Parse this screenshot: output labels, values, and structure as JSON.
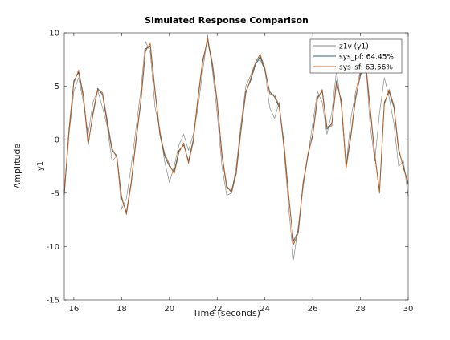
{
  "chart_data": {
    "type": "line",
    "title": "Simulated Response Comparison",
    "xlabel": "Time (seconds)",
    "ylabel": "Amplitude",
    "channel_label": "y1",
    "xlim": [
      15.6,
      30
    ],
    "ylim": [
      -15,
      10
    ],
    "x_ticks": [
      16,
      18,
      20,
      22,
      24,
      26,
      28,
      30
    ],
    "y_ticks": [
      -15,
      -10,
      -5,
      0,
      5,
      10
    ],
    "grid": false,
    "legend_position": "top-right",
    "series": [
      {
        "name": "z1v (y1)",
        "color": "#8a8a8a",
        "points": [
          [
            15.6,
            -5.2
          ],
          [
            15.8,
            0.5
          ],
          [
            16.0,
            4.5
          ],
          [
            16.2,
            5.8
          ],
          [
            16.4,
            3.5
          ],
          [
            16.6,
            0.5
          ],
          [
            16.8,
            3.5
          ],
          [
            17.0,
            4.6
          ],
          [
            17.2,
            3.0
          ],
          [
            17.4,
            1.2
          ],
          [
            17.6,
            -2.0
          ],
          [
            17.8,
            -1.5
          ],
          [
            18.0,
            -6.5
          ],
          [
            18.2,
            -5.5
          ],
          [
            18.4,
            -2.5
          ],
          [
            18.6,
            1.0
          ],
          [
            18.8,
            4.5
          ],
          [
            19.0,
            9.2
          ],
          [
            19.2,
            8.2
          ],
          [
            19.4,
            3.0
          ],
          [
            19.6,
            1.0
          ],
          [
            19.8,
            -2.0
          ],
          [
            20.0,
            -4.0
          ],
          [
            20.2,
            -2.5
          ],
          [
            20.4,
            -0.5
          ],
          [
            20.6,
            0.5
          ],
          [
            20.8,
            -1.0
          ],
          [
            21.0,
            0.5
          ],
          [
            21.2,
            3.0
          ],
          [
            21.4,
            6.5
          ],
          [
            21.6,
            9.8
          ],
          [
            21.8,
            6.5
          ],
          [
            22.0,
            2.5
          ],
          [
            22.2,
            -2.5
          ],
          [
            22.4,
            -5.2
          ],
          [
            22.6,
            -5.0
          ],
          [
            22.8,
            -2.5
          ],
          [
            23.0,
            1.5
          ],
          [
            23.2,
            5.0
          ],
          [
            23.4,
            6.0
          ],
          [
            23.6,
            7.2
          ],
          [
            23.8,
            7.5
          ],
          [
            24.0,
            6.5
          ],
          [
            24.2,
            3.0
          ],
          [
            24.4,
            2.0
          ],
          [
            24.6,
            3.5
          ],
          [
            24.8,
            -1.0
          ],
          [
            25.0,
            -6.5
          ],
          [
            25.2,
            -11.2
          ],
          [
            25.4,
            -8.0
          ],
          [
            25.6,
            -4.5
          ],
          [
            25.8,
            -1.5
          ],
          [
            26.0,
            1.5
          ],
          [
            26.2,
            4.5
          ],
          [
            26.4,
            3.5
          ],
          [
            26.6,
            0.5
          ],
          [
            26.8,
            2.5
          ],
          [
            27.0,
            6.5
          ],
          [
            27.2,
            3.0
          ],
          [
            27.4,
            -2.5
          ],
          [
            27.6,
            2.0
          ],
          [
            27.8,
            4.5
          ],
          [
            28.0,
            6.5
          ],
          [
            28.2,
            8.0
          ],
          [
            28.4,
            1.5
          ],
          [
            28.6,
            -2.0
          ],
          [
            28.8,
            2.5
          ],
          [
            29.0,
            5.8
          ],
          [
            29.2,
            4.0
          ],
          [
            29.4,
            1.5
          ],
          [
            29.6,
            -2.5
          ],
          [
            29.8,
            -2.0
          ],
          [
            30.0,
            -5.3
          ]
        ]
      },
      {
        "name": "sys_pf: 64.45%",
        "color": "#1e6b73",
        "points": [
          [
            15.6,
            -5.0
          ],
          [
            15.8,
            1.0
          ],
          [
            16.0,
            5.5
          ],
          [
            16.2,
            6.3
          ],
          [
            16.4,
            4.0
          ],
          [
            16.6,
            -0.5
          ],
          [
            16.8,
            2.5
          ],
          [
            17.0,
            4.8
          ],
          [
            17.2,
            4.2
          ],
          [
            17.4,
            1.5
          ],
          [
            17.6,
            -1.0
          ],
          [
            17.8,
            -1.5
          ],
          [
            18.0,
            -5.5
          ],
          [
            18.2,
            -6.8
          ],
          [
            18.4,
            -4.0
          ],
          [
            18.6,
            0.0
          ],
          [
            18.8,
            3.5
          ],
          [
            19.0,
            8.5
          ],
          [
            19.2,
            8.8
          ],
          [
            19.4,
            4.5
          ],
          [
            19.6,
            0.5
          ],
          [
            19.8,
            -1.5
          ],
          [
            20.0,
            -2.5
          ],
          [
            20.2,
            -3.0
          ],
          [
            20.4,
            -1.0
          ],
          [
            20.6,
            -0.5
          ],
          [
            20.8,
            -2.0
          ],
          [
            21.0,
            0.0
          ],
          [
            21.2,
            4.0
          ],
          [
            21.4,
            7.5
          ],
          [
            21.6,
            9.3
          ],
          [
            21.8,
            7.0
          ],
          [
            22.0,
            3.5
          ],
          [
            22.2,
            -1.5
          ],
          [
            22.4,
            -4.5
          ],
          [
            22.6,
            -4.8
          ],
          [
            22.8,
            -3.0
          ],
          [
            23.0,
            1.0
          ],
          [
            23.2,
            4.5
          ],
          [
            23.4,
            5.5
          ],
          [
            23.6,
            7.0
          ],
          [
            23.8,
            7.8
          ],
          [
            24.0,
            6.5
          ],
          [
            24.2,
            4.5
          ],
          [
            24.4,
            4.0
          ],
          [
            24.6,
            3.0
          ],
          [
            24.8,
            -0.5
          ],
          [
            25.0,
            -5.5
          ],
          [
            25.2,
            -9.5
          ],
          [
            25.4,
            -8.5
          ],
          [
            25.6,
            -4.0
          ],
          [
            25.8,
            -1.5
          ],
          [
            26.0,
            0.5
          ],
          [
            26.2,
            4.0
          ],
          [
            26.4,
            4.5
          ],
          [
            26.6,
            1.0
          ],
          [
            26.8,
            1.5
          ],
          [
            27.0,
            5.5
          ],
          [
            27.2,
            3.5
          ],
          [
            27.4,
            -2.5
          ],
          [
            27.6,
            0.5
          ],
          [
            27.8,
            4.0
          ],
          [
            28.0,
            6.0
          ],
          [
            28.2,
            7.5
          ],
          [
            28.4,
            3.0
          ],
          [
            28.6,
            -1.5
          ],
          [
            28.8,
            -4.8
          ],
          [
            29.0,
            3.5
          ],
          [
            29.2,
            4.5
          ],
          [
            29.4,
            3.0
          ],
          [
            29.6,
            -1.0
          ],
          [
            29.8,
            -2.5
          ],
          [
            30.0,
            -4.2
          ]
        ]
      },
      {
        "name": "sys_sf: 63.56%",
        "color": "#cc5a1a",
        "points": [
          [
            15.6,
            -5.1
          ],
          [
            15.8,
            0.8
          ],
          [
            16.0,
            5.3
          ],
          [
            16.2,
            6.5
          ],
          [
            16.4,
            4.2
          ],
          [
            16.6,
            -0.3
          ],
          [
            16.8,
            2.3
          ],
          [
            17.0,
            4.7
          ],
          [
            17.2,
            4.4
          ],
          [
            17.4,
            1.8
          ],
          [
            17.6,
            -0.8
          ],
          [
            17.8,
            -1.7
          ],
          [
            18.0,
            -5.3
          ],
          [
            18.2,
            -7.0
          ],
          [
            18.4,
            -4.2
          ],
          [
            18.6,
            -0.2
          ],
          [
            18.8,
            3.3
          ],
          [
            19.0,
            8.3
          ],
          [
            19.2,
            9.0
          ],
          [
            19.4,
            4.7
          ],
          [
            19.6,
            0.7
          ],
          [
            19.8,
            -1.3
          ],
          [
            20.0,
            -2.3
          ],
          [
            20.2,
            -3.2
          ],
          [
            20.4,
            -1.2
          ],
          [
            20.6,
            -0.3
          ],
          [
            20.8,
            -2.2
          ],
          [
            21.0,
            -0.2
          ],
          [
            21.2,
            3.8
          ],
          [
            21.4,
            7.3
          ],
          [
            21.6,
            9.5
          ],
          [
            21.8,
            7.2
          ],
          [
            22.0,
            3.7
          ],
          [
            22.2,
            -1.3
          ],
          [
            22.4,
            -4.3
          ],
          [
            22.6,
            -5.0
          ],
          [
            22.8,
            -3.2
          ],
          [
            23.0,
            0.8
          ],
          [
            23.2,
            4.3
          ],
          [
            23.4,
            5.7
          ],
          [
            23.6,
            7.2
          ],
          [
            23.8,
            8.0
          ],
          [
            24.0,
            6.7
          ],
          [
            24.2,
            4.3
          ],
          [
            24.4,
            4.2
          ],
          [
            24.6,
            3.2
          ],
          [
            24.8,
            -0.3
          ],
          [
            25.0,
            -5.3
          ],
          [
            25.2,
            -9.8
          ],
          [
            25.4,
            -8.7
          ],
          [
            25.6,
            -4.2
          ],
          [
            25.8,
            -1.3
          ],
          [
            26.0,
            0.3
          ],
          [
            26.2,
            3.8
          ],
          [
            26.4,
            4.7
          ],
          [
            26.6,
            1.2
          ],
          [
            26.8,
            1.3
          ],
          [
            27.0,
            5.3
          ],
          [
            27.2,
            3.7
          ],
          [
            27.4,
            -2.7
          ],
          [
            27.6,
            0.3
          ],
          [
            27.8,
            3.8
          ],
          [
            28.0,
            6.2
          ],
          [
            28.2,
            7.7
          ],
          [
            28.4,
            3.2
          ],
          [
            28.6,
            -1.3
          ],
          [
            28.8,
            -5.0
          ],
          [
            29.0,
            3.3
          ],
          [
            29.2,
            4.7
          ],
          [
            29.4,
            3.2
          ],
          [
            29.6,
            -0.8
          ],
          [
            29.8,
            -2.7
          ],
          [
            30.0,
            -4.0
          ]
        ]
      }
    ]
  }
}
